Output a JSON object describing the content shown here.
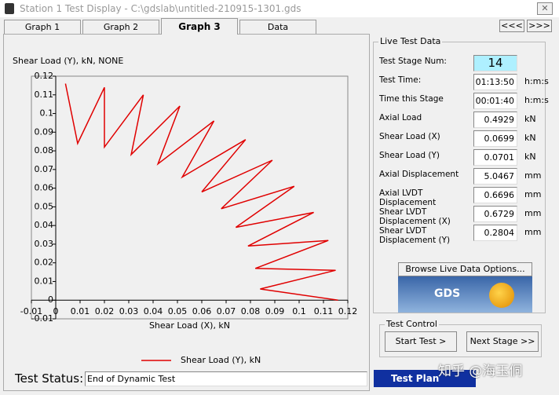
{
  "window": {
    "title": "Station 1 Test Display - C:\\gdslab\\untitled-210915-1301.gds",
    "tabs": [
      "Graph 1",
      "Graph 2",
      "Graph 3",
      "Data"
    ],
    "active_tab": "Graph 3",
    "nav": [
      "<<<",
      ">>>"
    ]
  },
  "chart_data": {
    "type": "line",
    "title": "Shear Load (Y), kN, NONE",
    "x_label": "Shear Load (X), kN",
    "x": [
      0.004,
      0.009,
      0.02,
      0.02,
      0.036,
      0.031,
      0.051,
      0.042,
      0.065,
      0.052,
      0.078,
      0.06,
      0.089,
      0.068,
      0.098,
      0.074,
      0.106,
      0.079,
      0.112,
      0.082,
      0.115,
      0.084,
      0.116
    ],
    "series": [
      {
        "name": "Shear Load (Y), kN",
        "color": "#e00000",
        "values": [
          0.116,
          0.084,
          0.114,
          0.082,
          0.11,
          0.078,
          0.104,
          0.073,
          0.096,
          0.066,
          0.086,
          0.058,
          0.075,
          0.049,
          0.061,
          0.039,
          0.047,
          0.029,
          0.032,
          0.017,
          0.016,
          0.006,
          0.0
        ]
      }
    ],
    "xlim": [
      -0.01,
      0.12
    ],
    "ylim": [
      -0.01,
      0.12
    ],
    "xticks": [
      -0.01,
      0,
      0.01,
      0.02,
      0.03,
      0.04,
      0.05,
      0.06,
      0.07,
      0.08,
      0.09,
      0.1,
      0.11,
      0.12
    ],
    "yticks": [
      -0.01,
      0,
      0.01,
      0.02,
      0.03,
      0.04,
      0.05,
      0.06,
      0.07,
      0.08,
      0.09,
      0.1,
      0.11,
      0.12
    ],
    "legend": "bottom"
  },
  "live_data": {
    "title": "Live Test Data",
    "rows": [
      {
        "label": "Test Stage Num:",
        "value": "14"
      },
      {
        "label": "Test Time:",
        "value": "01:13:50",
        "unit": "h:m:s"
      },
      {
        "label": "Time this Stage",
        "value": "00:01:40",
        "unit": "h:m:s"
      },
      {
        "label": "Axial Load",
        "value": "0.4929",
        "unit": "kN"
      },
      {
        "label": "Shear Load (X)",
        "value": "0.0699",
        "unit": "kN"
      },
      {
        "label": "Shear Load (Y)",
        "value": "0.0701",
        "unit": "kN"
      },
      {
        "label": "Axial Displacement",
        "value": "5.0467",
        "unit": "mm"
      },
      {
        "label": "Axial LVDT Displacement",
        "value": "0.6696",
        "unit": "mm"
      },
      {
        "label": "Shear LVDT Displacement (X)",
        "value": "0.6729",
        "unit": "mm"
      },
      {
        "label": "Shear LVDT Displacement (Y)",
        "value": "0.2804",
        "unit": "mm"
      }
    ],
    "browse_button": "Browse Live Data Options...",
    "logo": "GDS"
  },
  "test_control": {
    "title": "Test Control",
    "buttons": [
      "Start Test >",
      "Next Stage >>"
    ]
  },
  "status": {
    "label": "Test Status:",
    "value": "End of Dynamic Test",
    "plan_button": "Test Plan"
  },
  "watermark": "知乎 @海玉侗"
}
